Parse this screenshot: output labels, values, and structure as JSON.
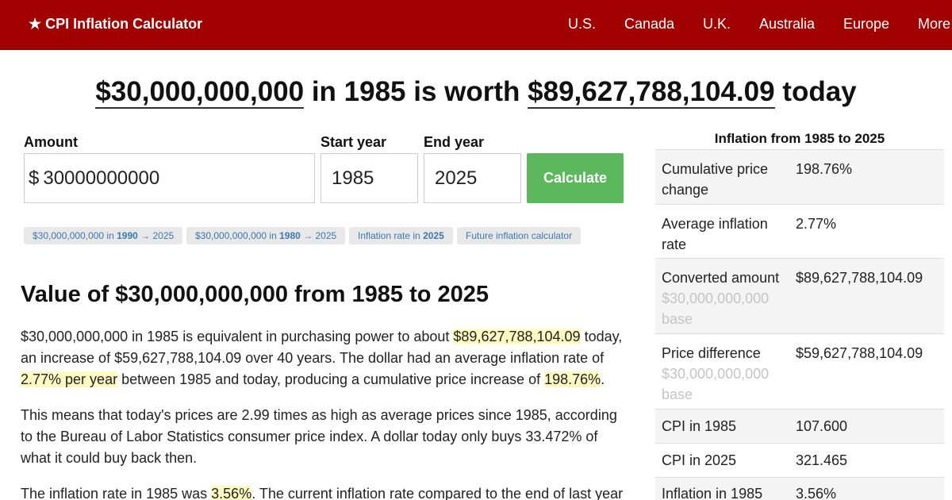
{
  "header": {
    "brand": "★ CPI Inflation Calculator",
    "nav": [
      "U.S.",
      "Canada",
      "U.K.",
      "Australia",
      "Europe",
      "More"
    ]
  },
  "headline": {
    "amount": "$30,000,000,000",
    "middle": " in 1985 is worth ",
    "result": "$89,627,788,104.09",
    "suffix": " today"
  },
  "form": {
    "amount_label": "Amount",
    "currency_symbol": "$",
    "amount_value": "30000000000",
    "start_label": "Start year",
    "start_value": "1985",
    "end_label": "End year",
    "end_value": "2025",
    "button": "Calculate"
  },
  "chips": [
    {
      "pre": "$30,000,000,000 in ",
      "bold": "1990",
      "post": " → 2025"
    },
    {
      "pre": "$30,000,000,000 in ",
      "bold": "1980",
      "post": " → 2025"
    },
    {
      "pre": "Inflation rate in ",
      "bold": "2025",
      "post": ""
    },
    {
      "pre": "Future inflation calculator",
      "bold": "",
      "post": ""
    }
  ],
  "article": {
    "heading": "Value of $30,000,000,000 from 1985 to 2025",
    "p1": {
      "a": "$30,000,000,000 in 1985 is equivalent in purchasing power to about ",
      "b": "$89,627,788,104.09",
      "c": " today, an increase of $59,627,788,104.09 over 40 years. The dollar had an average inflation rate of ",
      "d": "2.77% per year",
      "e": " between 1985 and today, producing a cumulative price increase of ",
      "f": "198.76%",
      "g": "."
    },
    "p2": "This means that today's prices are 2.99 times as high as average prices since 1985, according to the Bureau of Labor Statistics consumer price index. A dollar today only buys 33.472% of what it could buy back then.",
    "p3": {
      "a": "The inflation rate in 1985 was ",
      "b": "3.56%",
      "c": ". The current inflation rate compared to the end of last year"
    }
  },
  "sidebar": {
    "title": "Inflation from 1985 to 2025",
    "rows": [
      {
        "label": "Cumulative price change",
        "sub": "",
        "value": "198.76%"
      },
      {
        "label": "Average inflation rate",
        "sub": "",
        "value": "2.77%"
      },
      {
        "label": "Converted amount",
        "sub": "$30,000,000,000 base",
        "value": "$89,627,788,104.09"
      },
      {
        "label": "Price difference",
        "sub": "$30,000,000,000 base",
        "value": "$59,627,788,104.09"
      },
      {
        "label": "CPI in 1985",
        "sub": "",
        "value": "107.600"
      },
      {
        "label": "CPI in 2025",
        "sub": "",
        "value": "321.465"
      },
      {
        "label": "Inflation in 1985",
        "sub": "",
        "value": "3.56%"
      }
    ]
  }
}
